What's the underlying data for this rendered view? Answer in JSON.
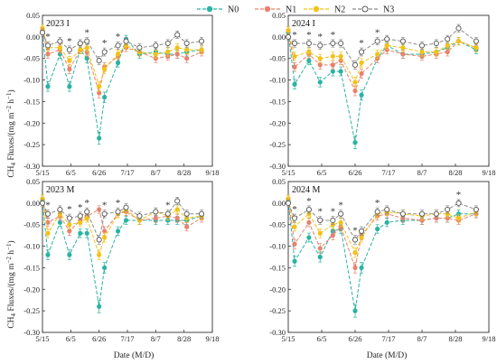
{
  "figure": {
    "x_axis_label": "Date (M/D)",
    "y_axis_label": "CH4 Fluxes/(mg m-2 h-1)"
  },
  "legend": [
    {
      "name": "N0",
      "color": "#2ab3a2",
      "marker": "circle-filled"
    },
    {
      "name": "N1",
      "color": "#e8826c",
      "marker": "circle-filled"
    },
    {
      "name": "N2",
      "color": "#f2c217",
      "marker": "circle-filled"
    },
    {
      "name": "N3",
      "color": "#8c8c8c",
      "marker": "circle-open"
    }
  ],
  "chart_data": [
    {
      "type": "line",
      "panel_title": "2023 I",
      "x_ticks": [
        "5/15",
        "6/5",
        "6/26",
        "7/17",
        "8/7",
        "8/28",
        "9/18"
      ],
      "y_ticks": [
        "0.05",
        "0.00",
        "-0.05",
        "-0.10",
        "-0.15",
        "-0.20",
        "-0.25",
        "-0.30"
      ],
      "xlim": [
        0,
        126
      ],
      "ylim": [
        -0.3,
        0.05
      ],
      "x_days": [
        0,
        4,
        13,
        20,
        28,
        33,
        42,
        46,
        56,
        62,
        72,
        84,
        93,
        100,
        107,
        118
      ],
      "series": [
        {
          "name": "N0",
          "values": [
            0.01,
            -0.115,
            -0.04,
            -0.115,
            -0.03,
            -0.05,
            -0.235,
            -0.14,
            -0.06,
            -0.005,
            -0.04,
            -0.035,
            -0.04,
            -0.04,
            -0.035,
            -0.03
          ]
        },
        {
          "name": "N1",
          "values": [
            0.015,
            -0.04,
            -0.03,
            -0.075,
            -0.03,
            -0.035,
            -0.13,
            -0.07,
            -0.045,
            -0.025,
            -0.035,
            -0.05,
            -0.045,
            -0.04,
            -0.05,
            -0.035
          ]
        },
        {
          "name": "N2",
          "values": [
            0.02,
            -0.025,
            -0.025,
            -0.055,
            -0.03,
            -0.025,
            -0.115,
            -0.075,
            -0.04,
            -0.02,
            -0.035,
            -0.04,
            -0.035,
            -0.025,
            -0.03,
            -0.03
          ]
        },
        {
          "name": "N3",
          "values": [
            0.01,
            -0.02,
            -0.01,
            -0.03,
            -0.015,
            -0.01,
            -0.055,
            -0.035,
            -0.02,
            -0.01,
            -0.025,
            -0.02,
            -0.015,
            0.005,
            -0.015,
            -0.01
          ]
        }
      ],
      "significance_x": [
        4,
        20,
        33,
        46,
        56
      ]
    },
    {
      "type": "line",
      "panel_title": "2024 I",
      "x_ticks": [
        "5/15",
        "6/5",
        "6/26",
        "7/17",
        "8/7",
        "8/28",
        "9/18"
      ],
      "y_ticks": [
        "0.05",
        "0.00",
        "-0.05",
        "-0.10",
        "-0.15",
        "-0.20",
        "-0.25",
        "-0.30"
      ],
      "xlim": [
        0,
        126
      ],
      "ylim": [
        -0.3,
        0.05
      ],
      "x_days": [
        0,
        4,
        13,
        20,
        28,
        33,
        42,
        46,
        56,
        62,
        72,
        84,
        93,
        100,
        107,
        118
      ],
      "series": [
        {
          "name": "N0",
          "values": [
            0.01,
            -0.11,
            -0.055,
            -0.105,
            -0.08,
            -0.08,
            -0.245,
            -0.135,
            -0.05,
            -0.02,
            -0.04,
            -0.04,
            -0.035,
            -0.025,
            -0.01,
            -0.03
          ]
        },
        {
          "name": "N1",
          "values": [
            0.015,
            -0.07,
            -0.04,
            -0.065,
            -0.065,
            -0.055,
            -0.125,
            -0.085,
            -0.05,
            -0.03,
            -0.04,
            -0.045,
            -0.04,
            -0.035,
            -0.01,
            -0.025
          ]
        },
        {
          "name": "N2",
          "values": [
            0.015,
            -0.045,
            -0.035,
            -0.05,
            -0.045,
            -0.045,
            -0.105,
            -0.06,
            -0.04,
            -0.02,
            -0.025,
            -0.035,
            -0.035,
            -0.02,
            -0.01,
            -0.025
          ]
        },
        {
          "name": "N3",
          "values": [
            0.0,
            -0.015,
            -0.015,
            -0.02,
            -0.015,
            -0.015,
            -0.065,
            -0.035,
            -0.01,
            -0.005,
            -0.01,
            -0.02,
            -0.015,
            -0.005,
            0.02,
            -0.01
          ]
        }
      ],
      "significance_x": [
        4,
        13,
        20,
        28,
        46,
        56
      ]
    },
    {
      "type": "line",
      "panel_title": "2023 M",
      "x_ticks": [
        "5/15",
        "6/5",
        "6/26",
        "7/17",
        "8/7",
        "8/28",
        "9/18"
      ],
      "y_ticks": [
        "0.05",
        "0.00",
        "-0.05",
        "-0.10",
        "-0.15",
        "-0.20",
        "-0.25",
        "-0.30"
      ],
      "xlim": [
        0,
        126
      ],
      "ylim": [
        -0.3,
        0.05
      ],
      "x_days": [
        0,
        4,
        13,
        20,
        28,
        33,
        42,
        46,
        56,
        62,
        72,
        84,
        93,
        100,
        107,
        118
      ],
      "series": [
        {
          "name": "N0",
          "values": [
            0.005,
            -0.12,
            -0.045,
            -0.12,
            -0.07,
            -0.07,
            -0.24,
            -0.15,
            -0.065,
            -0.04,
            -0.04,
            -0.04,
            -0.04,
            -0.04,
            -0.04,
            -0.03
          ]
        },
        {
          "name": "N1",
          "values": [
            0.01,
            -0.045,
            -0.03,
            -0.065,
            -0.04,
            -0.03,
            -0.015,
            -0.065,
            -0.025,
            -0.02,
            -0.04,
            -0.035,
            -0.03,
            -0.035,
            -0.055,
            -0.035
          ]
        },
        {
          "name": "N2",
          "values": [
            0.01,
            -0.07,
            -0.025,
            -0.05,
            -0.045,
            -0.035,
            -0.12,
            -0.08,
            -0.025,
            -0.015,
            -0.04,
            -0.02,
            -0.03,
            -0.015,
            -0.035,
            -0.03
          ]
        },
        {
          "name": "N3",
          "values": [
            0.0,
            -0.025,
            -0.015,
            -0.035,
            -0.03,
            -0.02,
            -0.085,
            -0.025,
            -0.02,
            -0.01,
            -0.03,
            -0.02,
            -0.025,
            0.005,
            -0.025,
            -0.025
          ]
        }
      ],
      "significance_x": [
        4,
        20,
        28,
        33,
        46,
        56,
        93
      ]
    },
    {
      "type": "line",
      "panel_title": "2024 M",
      "x_ticks": [
        "5/15",
        "6/5",
        "6/26",
        "7/17",
        "8/7",
        "8/28",
        "9/18"
      ],
      "y_ticks": [
        "0.05",
        "0.00",
        "-0.05",
        "-0.10",
        "-0.15",
        "-0.20",
        "-0.25",
        "-0.30"
      ],
      "xlim": [
        0,
        126
      ],
      "ylim": [
        -0.3,
        0.05
      ],
      "x_days": [
        0,
        4,
        13,
        20,
        28,
        33,
        42,
        46,
        56,
        62,
        72,
        84,
        93,
        100,
        107,
        118
      ],
      "series": [
        {
          "name": "N0",
          "values": [
            0.005,
            -0.135,
            -0.08,
            -0.125,
            -0.065,
            -0.06,
            -0.25,
            -0.15,
            -0.06,
            -0.045,
            -0.04,
            -0.04,
            -0.035,
            -0.035,
            -0.025,
            -0.025
          ]
        },
        {
          "name": "N1",
          "values": [
            0.01,
            -0.095,
            -0.045,
            -0.105,
            -0.075,
            -0.055,
            -0.15,
            -0.075,
            -0.03,
            -0.025,
            -0.035,
            -0.04,
            -0.035,
            -0.035,
            -0.04,
            -0.025
          ]
        },
        {
          "name": "N2",
          "values": [
            0.01,
            -0.055,
            -0.025,
            -0.07,
            -0.05,
            -0.045,
            -0.115,
            -0.08,
            -0.025,
            -0.02,
            -0.025,
            -0.03,
            -0.025,
            -0.025,
            -0.035,
            -0.02
          ]
        },
        {
          "name": "N3",
          "values": [
            0.0,
            -0.035,
            -0.015,
            -0.04,
            -0.04,
            -0.025,
            -0.085,
            -0.065,
            -0.02,
            -0.015,
            -0.025,
            -0.025,
            -0.025,
            -0.015,
            0.0,
            -0.015
          ]
        }
      ],
      "significance_x": [
        4,
        13,
        20,
        28,
        33,
        42,
        56,
        107
      ]
    }
  ]
}
